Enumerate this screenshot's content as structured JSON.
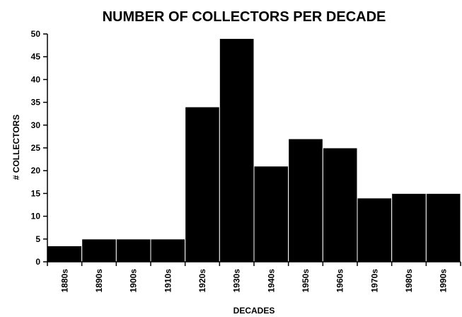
{
  "chart_data": {
    "type": "bar",
    "title": "NUMBER OF COLLECTORS PER DECADE",
    "xlabel": "DECADES",
    "ylabel": "# COLLECTORS",
    "categories": [
      "1880s",
      "1890s",
      "1900s",
      "1910s",
      "1920s",
      "1930s",
      "1940s",
      "1950s",
      "1960s",
      "1970s",
      "1980s",
      "1990s"
    ],
    "values": [
      3.5,
      5,
      5,
      5,
      34,
      49,
      21,
      27,
      25,
      14,
      15,
      15
    ],
    "ylim": [
      0,
      50
    ],
    "yticks": [
      0,
      5,
      10,
      15,
      20,
      25,
      30,
      35,
      40,
      45,
      50
    ],
    "grid": false,
    "bar_color": "#000000"
  }
}
